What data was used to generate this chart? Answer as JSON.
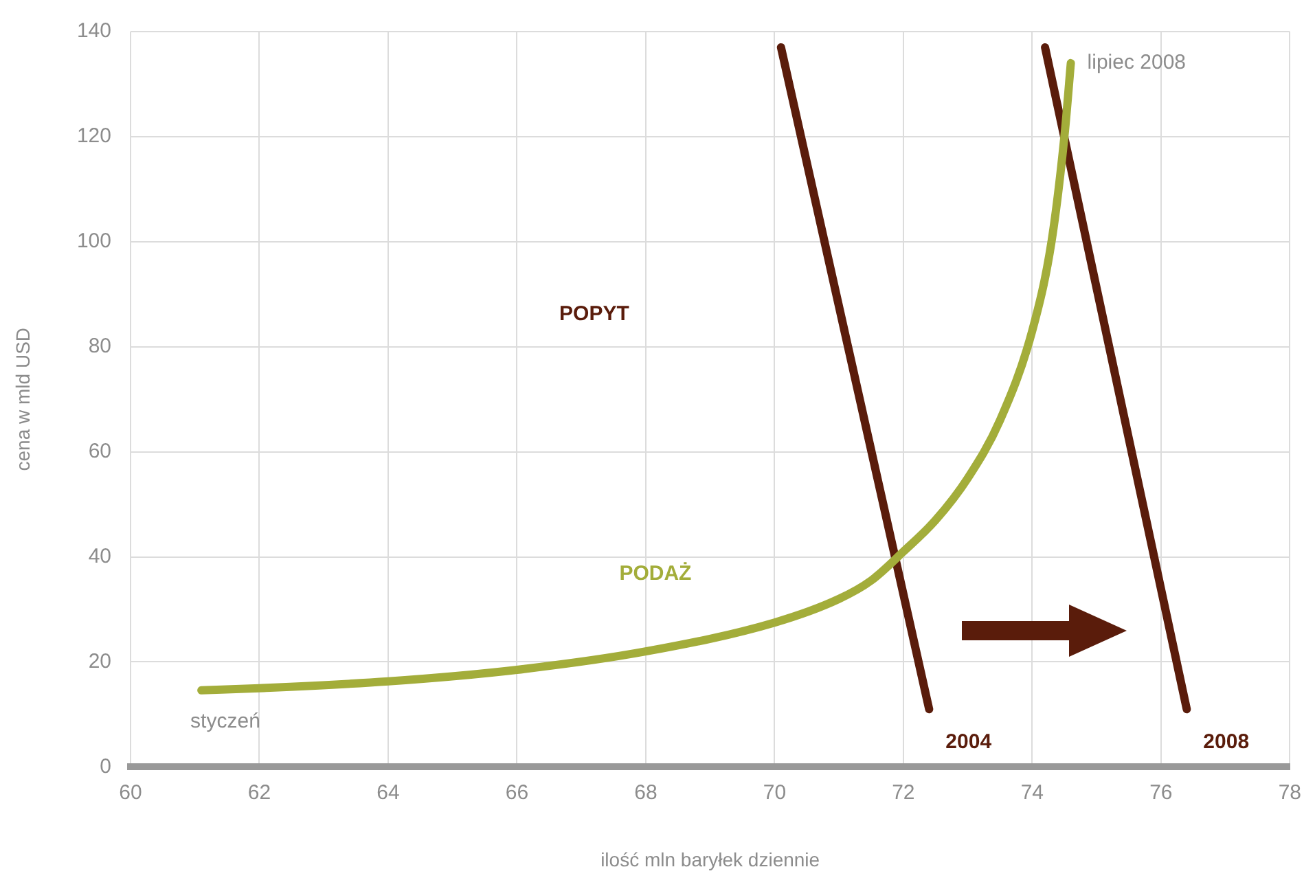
{
  "chart_data": {
    "type": "line",
    "xlabel": "ilość mln baryłek dziennie",
    "ylabel": "cena w mld USD",
    "xlim": [
      60,
      78
    ],
    "xticks": [
      60,
      62,
      64,
      66,
      68,
      70,
      72,
      74,
      76,
      78
    ],
    "ylim": [
      0,
      140
    ],
    "yticks": [
      0,
      20,
      40,
      60,
      80,
      100,
      120,
      140
    ],
    "grid": true,
    "legend": false,
    "marker": "none",
    "line_style": "solid",
    "series": [
      {
        "name": "PODAŻ",
        "color": "#a3ad3a",
        "x": [
          61.1,
          62,
          64,
          66,
          68,
          70,
          71,
          71.5,
          72,
          72.5,
          73,
          73.5,
          74,
          74.3,
          74.5,
          74.6
        ],
        "values": [
          14.6,
          15,
          16.3,
          18.5,
          22,
          27.5,
          32,
          35.5,
          41,
          47,
          55,
          66,
          83,
          100,
          120,
          134
        ]
      },
      {
        "name": "2004",
        "color": "#5a1c0b",
        "x": [
          70.1,
          72.4
        ],
        "values": [
          137,
          11
        ]
      },
      {
        "name": "2008",
        "color": "#5a1c0b",
        "x": [
          74.2,
          76.4
        ],
        "values": [
          137,
          11
        ]
      }
    ],
    "annotations": [
      "POPYT",
      {
        "text": "lipiec 2008",
        "x": 74.6,
        "y": 134
      },
      {
        "text": "styczeń",
        "x": 61.1,
        "y": 14.6
      }
    ]
  }
}
